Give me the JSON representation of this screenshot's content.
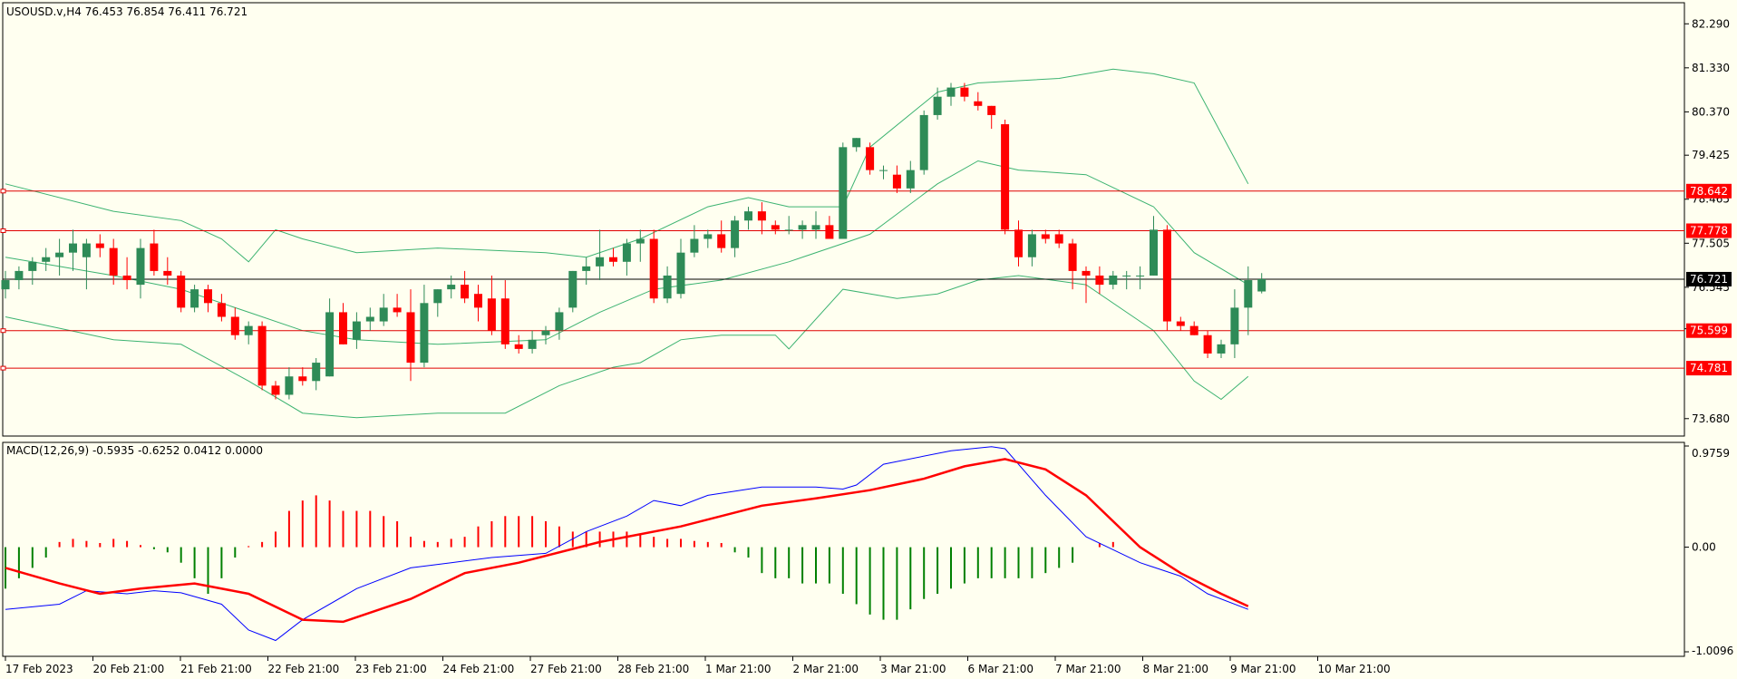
{
  "colors": {
    "background": "#fffff0",
    "border": "#000000",
    "bull": "#2e8b57",
    "bear": "#ff0000",
    "band": "#3cb371",
    "hline": "#e00000",
    "current_line": "#000000",
    "macd_line": "#0000ff",
    "signal_line": "#ff0000",
    "hist_up": "#ff0000",
    "hist_down": "#008000"
  },
  "chart_data": [
    {
      "type": "candlestick",
      "title": "USOUSD.v,H4  76.453 76.854 76.411 76.721",
      "symbol": "USOUSD.v",
      "timeframe": "H4",
      "ohlc_readout": [
        76.453,
        76.854,
        76.411,
        76.721
      ],
      "ylim": [
        73.3,
        82.75
      ],
      "y_ticks": [
        "82.290",
        "81.330",
        "80.370",
        "79.425",
        "78.465",
        "77.505",
        "76.545",
        "75.640",
        "73.680"
      ],
      "x_ticks": [
        "17 Feb 2023",
        "20 Feb 21:00",
        "21 Feb 21:00",
        "22 Feb 21:00",
        "23 Feb 21:00",
        "24 Feb 21:00",
        "27 Feb 21:00",
        "28 Feb 21:00",
        "1 Mar 21:00",
        "2 Mar 21:00",
        "3 Mar 21:00",
        "6 Mar 21:00",
        "7 Mar 21:00",
        "8 Mar 21:00",
        "9 Mar 21:00",
        "10 Mar 21:00"
      ],
      "candles": [
        [
          76.5,
          76.9,
          76.3,
          76.7
        ],
        [
          76.7,
          77.0,
          76.5,
          76.9
        ],
        [
          76.9,
          77.2,
          76.6,
          77.1
        ],
        [
          77.1,
          77.4,
          76.9,
          77.2
        ],
        [
          77.2,
          77.6,
          76.8,
          77.3
        ],
        [
          77.3,
          77.8,
          76.9,
          77.5
        ],
        [
          77.2,
          77.6,
          76.5,
          77.5
        ],
        [
          77.5,
          77.7,
          77.2,
          77.4
        ],
        [
          77.4,
          77.6,
          76.6,
          76.8
        ],
        [
          76.8,
          77.2,
          76.5,
          76.7
        ],
        [
          76.6,
          77.6,
          76.3,
          77.4
        ],
        [
          77.5,
          77.8,
          76.8,
          76.9
        ],
        [
          76.9,
          77.2,
          76.6,
          76.8
        ],
        [
          76.8,
          76.9,
          76.0,
          76.1
        ],
        [
          76.1,
          76.6,
          76.0,
          76.5
        ],
        [
          76.5,
          76.6,
          76.0,
          76.2
        ],
        [
          76.2,
          76.4,
          75.8,
          75.9
        ],
        [
          75.9,
          76.1,
          75.4,
          75.5
        ],
        [
          75.5,
          75.8,
          75.3,
          75.7
        ],
        [
          75.7,
          75.8,
          74.3,
          74.4
        ],
        [
          74.4,
          74.5,
          74.1,
          74.2
        ],
        [
          74.2,
          74.8,
          74.1,
          74.6
        ],
        [
          74.6,
          74.8,
          74.4,
          74.5
        ],
        [
          74.5,
          75.0,
          74.3,
          74.9
        ],
        [
          74.6,
          76.3,
          74.6,
          76.0
        ],
        [
          76.0,
          76.2,
          75.3,
          75.3
        ],
        [
          75.4,
          76.0,
          75.2,
          75.8
        ],
        [
          75.8,
          76.1,
          75.6,
          75.9
        ],
        [
          75.8,
          76.4,
          75.7,
          76.1
        ],
        [
          76.1,
          76.4,
          75.9,
          76.0
        ],
        [
          76.0,
          76.5,
          74.5,
          74.9
        ],
        [
          74.9,
          76.6,
          74.8,
          76.2
        ],
        [
          76.2,
          76.5,
          75.9,
          76.5
        ],
        [
          76.5,
          76.8,
          76.3,
          76.6
        ],
        [
          76.6,
          76.9,
          76.2,
          76.3
        ],
        [
          76.4,
          76.6,
          75.8,
          76.1
        ],
        [
          76.3,
          76.8,
          75.5,
          75.6
        ],
        [
          76.3,
          76.7,
          75.2,
          75.3
        ],
        [
          75.3,
          75.5,
          75.1,
          75.2
        ],
        [
          75.2,
          75.6,
          75.1,
          75.4
        ],
        [
          75.5,
          75.7,
          75.3,
          75.6
        ],
        [
          75.6,
          76.1,
          75.4,
          76.0
        ],
        [
          76.1,
          76.9,
          76.0,
          76.9
        ],
        [
          76.9,
          77.2,
          76.6,
          77.0
        ],
        [
          77.0,
          77.8,
          76.7,
          77.2
        ],
        [
          77.2,
          77.4,
          77.0,
          77.1
        ],
        [
          77.1,
          77.6,
          76.8,
          77.5
        ],
        [
          77.5,
          77.8,
          77.1,
          77.6
        ],
        [
          77.6,
          77.8,
          76.2,
          76.3
        ],
        [
          76.3,
          77.0,
          76.2,
          76.8
        ],
        [
          76.4,
          77.6,
          76.3,
          77.3
        ],
        [
          77.3,
          77.9,
          77.2,
          77.6
        ],
        [
          77.6,
          77.8,
          77.4,
          77.7
        ],
        [
          77.7,
          78.0,
          77.3,
          77.4
        ],
        [
          77.4,
          78.1,
          77.2,
          78.0
        ],
        [
          78.0,
          78.3,
          77.8,
          78.2
        ],
        [
          78.2,
          78.4,
          77.7,
          78.0
        ],
        [
          77.9,
          78.0,
          77.7,
          77.8
        ],
        [
          77.8,
          78.1,
          77.7,
          77.8
        ],
        [
          77.8,
          78.0,
          77.6,
          77.9
        ],
        [
          77.8,
          78.2,
          77.6,
          77.9
        ],
        [
          77.9,
          78.1,
          77.6,
          77.6
        ],
        [
          77.6,
          79.7,
          77.6,
          79.6
        ],
        [
          79.6,
          79.8,
          79.5,
          79.8
        ],
        [
          79.6,
          79.7,
          79.0,
          79.1
        ],
        [
          79.1,
          79.2,
          78.9,
          79.1
        ],
        [
          79.0,
          79.2,
          78.6,
          78.7
        ],
        [
          78.7,
          79.3,
          78.6,
          79.1
        ],
        [
          79.1,
          80.4,
          79.0,
          80.3
        ],
        [
          80.3,
          80.9,
          80.2,
          80.7
        ],
        [
          80.7,
          81.0,
          80.5,
          80.9
        ],
        [
          80.9,
          81.0,
          80.6,
          80.7
        ],
        [
          80.6,
          80.8,
          80.4,
          80.5
        ],
        [
          80.5,
          80.5,
          80.0,
          80.3
        ],
        [
          80.1,
          80.2,
          77.7,
          77.8
        ],
        [
          77.8,
          78.0,
          77.0,
          77.2
        ],
        [
          77.2,
          77.8,
          77.0,
          77.7
        ],
        [
          77.7,
          77.8,
          77.5,
          77.6
        ],
        [
          77.7,
          77.8,
          77.4,
          77.5
        ],
        [
          77.5,
          77.6,
          76.5,
          76.9
        ],
        [
          76.9,
          77.0,
          76.2,
          76.8
        ],
        [
          76.8,
          77.0,
          76.4,
          76.6
        ],
        [
          76.6,
          76.9,
          76.5,
          76.8
        ],
        [
          76.8,
          76.9,
          76.5,
          76.8
        ],
        [
          76.8,
          77.0,
          76.5,
          76.8
        ],
        [
          76.8,
          78.1,
          76.8,
          77.8
        ],
        [
          77.8,
          77.9,
          75.6,
          75.8
        ],
        [
          75.8,
          75.9,
          75.6,
          75.7
        ],
        [
          75.7,
          75.8,
          75.5,
          75.5
        ],
        [
          75.5,
          75.6,
          75.0,
          75.1
        ],
        [
          75.1,
          75.4,
          75.0,
          75.3
        ],
        [
          75.3,
          76.5,
          75.0,
          76.1
        ],
        [
          76.1,
          77.0,
          75.5,
          76.7
        ],
        [
          76.453,
          76.854,
          76.411,
          76.721
        ]
      ],
      "bollinger": {
        "upper": [
          [
            0,
            78.8
          ],
          [
            8,
            78.2
          ],
          [
            13,
            78.0
          ],
          [
            16,
            77.6
          ],
          [
            18,
            77.1
          ],
          [
            20,
            77.8
          ],
          [
            22,
            77.6
          ],
          [
            26,
            77.3
          ],
          [
            32,
            77.4
          ],
          [
            40,
            77.3
          ],
          [
            43,
            77.2
          ],
          [
            47,
            77.6
          ],
          [
            52,
            78.3
          ],
          [
            55,
            78.5
          ],
          [
            58,
            78.3
          ],
          [
            62,
            78.3
          ],
          [
            64,
            79.6
          ],
          [
            69,
            80.8
          ],
          [
            72,
            81.0
          ],
          [
            78,
            81.1
          ],
          [
            82,
            81.3
          ],
          [
            85,
            81.2
          ],
          [
            88,
            81.0
          ],
          [
            92,
            78.8
          ]
        ],
        "middle": [
          [
            0,
            77.2
          ],
          [
            8,
            76.8
          ],
          [
            13,
            76.5
          ],
          [
            18,
            76.0
          ],
          [
            22,
            75.6
          ],
          [
            26,
            75.4
          ],
          [
            32,
            75.3
          ],
          [
            40,
            75.4
          ],
          [
            44,
            76.0
          ],
          [
            48,
            76.5
          ],
          [
            53,
            76.7
          ],
          [
            58,
            77.1
          ],
          [
            62,
            77.5
          ],
          [
            64,
            77.7
          ],
          [
            69,
            78.8
          ],
          [
            72,
            79.3
          ],
          [
            75,
            79.1
          ],
          [
            80,
            79.0
          ],
          [
            85,
            78.3
          ],
          [
            88,
            77.3
          ],
          [
            92,
            76.6
          ]
        ],
        "lower": [
          [
            0,
            75.9
          ],
          [
            8,
            75.4
          ],
          [
            13,
            75.3
          ],
          [
            18,
            74.5
          ],
          [
            22,
            73.8
          ],
          [
            26,
            73.7
          ],
          [
            32,
            73.8
          ],
          [
            37,
            73.8
          ],
          [
            41,
            74.4
          ],
          [
            45,
            74.8
          ],
          [
            47,
            74.9
          ],
          [
            50,
            75.4
          ],
          [
            53,
            75.5
          ],
          [
            55,
            75.5
          ],
          [
            57,
            75.5
          ],
          [
            58,
            75.2
          ],
          [
            62,
            76.5
          ],
          [
            66,
            76.3
          ],
          [
            69,
            76.4
          ],
          [
            72,
            76.7
          ],
          [
            75,
            76.8
          ],
          [
            80,
            76.6
          ],
          [
            85,
            75.6
          ],
          [
            88,
            74.5
          ],
          [
            90,
            74.1
          ],
          [
            92,
            74.6
          ]
        ]
      },
      "levels": [
        78.642,
        77.778,
        76.721,
        75.599,
        74.781
      ],
      "current_price": 76.721,
      "price_labels": [
        "78.642",
        "77.778",
        "76.721",
        "75.599",
        "74.781"
      ]
    },
    {
      "type": "macd",
      "title": "MACD(12,26,9) -0.5935 -0.6252 0.0412 0.0000",
      "params": [
        12,
        26,
        9
      ],
      "ylim": [
        -1.0096,
        0.9759
      ],
      "y_ticks": [
        "0.9759",
        "0.00",
        "-1.0096"
      ],
      "macd": [
        [
          0,
          -0.6
        ],
        [
          4,
          -0.55
        ],
        [
          6,
          -0.42
        ],
        [
          9,
          -0.45
        ],
        [
          11,
          -0.42
        ],
        [
          13,
          -0.44
        ],
        [
          16,
          -0.55
        ],
        [
          18,
          -0.8
        ],
        [
          20,
          -0.9
        ],
        [
          22,
          -0.7
        ],
        [
          26,
          -0.4
        ],
        [
          30,
          -0.2
        ],
        [
          33,
          -0.15
        ],
        [
          36,
          -0.1
        ],
        [
          40,
          -0.06
        ],
        [
          43,
          0.15
        ],
        [
          46,
          0.3
        ],
        [
          48,
          0.45
        ],
        [
          50,
          0.4
        ],
        [
          52,
          0.5
        ],
        [
          56,
          0.58
        ],
        [
          60,
          0.58
        ],
        [
          62,
          0.56
        ],
        [
          63,
          0.6
        ],
        [
          65,
          0.8
        ],
        [
          70,
          0.93
        ],
        [
          73,
          0.97
        ],
        [
          74,
          0.95
        ],
        [
          77,
          0.5
        ],
        [
          80,
          0.1
        ],
        [
          84,
          -0.15
        ],
        [
          87,
          -0.28
        ],
        [
          89,
          -0.45
        ],
        [
          92,
          -0.6
        ]
      ],
      "signal": [
        [
          0,
          -0.2
        ],
        [
          4,
          -0.35
        ],
        [
          7,
          -0.45
        ],
        [
          10,
          -0.4
        ],
        [
          14,
          -0.35
        ],
        [
          18,
          -0.45
        ],
        [
          22,
          -0.7
        ],
        [
          25,
          -0.72
        ],
        [
          30,
          -0.5
        ],
        [
          34,
          -0.25
        ],
        [
          38,
          -0.15
        ],
        [
          44,
          0.05
        ],
        [
          50,
          0.2
        ],
        [
          56,
          0.4
        ],
        [
          60,
          0.47
        ],
        [
          64,
          0.55
        ],
        [
          68,
          0.66
        ],
        [
          71,
          0.78
        ],
        [
          74,
          0.85
        ],
        [
          77,
          0.75
        ],
        [
          80,
          0.5
        ],
        [
          84,
          0.0
        ],
        [
          87,
          -0.25
        ],
        [
          90,
          -0.45
        ],
        [
          92,
          -0.57
        ]
      ],
      "histogram": [
        -0.4,
        -0.3,
        -0.2,
        -0.1,
        0.05,
        0.08,
        0.06,
        0.04,
        0.08,
        0.06,
        0.02,
        -0.02,
        -0.05,
        -0.15,
        -0.3,
        -0.45,
        -0.3,
        -0.1,
        0.01,
        0.05,
        0.15,
        0.35,
        0.45,
        0.5,
        0.45,
        0.35,
        0.35,
        0.35,
        0.3,
        0.25,
        0.1,
        0.06,
        0.05,
        0.08,
        0.1,
        0.2,
        0.25,
        0.3,
        0.3,
        0.3,
        0.25,
        0.2,
        0.15,
        0.15,
        0.15,
        0.15,
        0.15,
        0.12,
        0.1,
        0.08,
        0.08,
        0.06,
        0.05,
        0.04,
        -0.05,
        -0.1,
        -0.25,
        -0.3,
        -0.3,
        -0.35,
        -0.35,
        -0.35,
        -0.45,
        -0.55,
        -0.65,
        -0.7,
        -0.7,
        -0.6,
        -0.5,
        -0.45,
        -0.4,
        -0.35,
        -0.3,
        -0.3,
        -0.3,
        -0.3,
        -0.3,
        -0.25,
        -0.2,
        -0.15,
        0.0,
        0.04,
        0.05
      ]
    }
  ]
}
